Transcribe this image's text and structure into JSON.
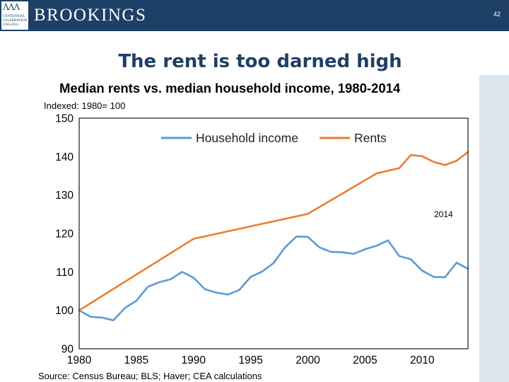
{
  "header": {
    "brand": "BROOKINGS",
    "page_number": "42"
  },
  "slide_title": "The rent is too darned high",
  "chart_data": {
    "type": "line",
    "title": "Median rents vs. median household income, 1980-2014",
    "subtitle": "Indexed: 1980= 100",
    "source": "Source: Census Bureau; BLS; Haver; CEA calculations",
    "annotation": "2014",
    "xlim": [
      1980,
      2014
    ],
    "ylim": [
      90,
      150
    ],
    "x_ticks": [
      1980,
      1985,
      1990,
      1995,
      2000,
      2005,
      2010
    ],
    "y_ticks": [
      90,
      100,
      110,
      120,
      130,
      140,
      150
    ],
    "series": [
      {
        "name": "Household income",
        "color": "#5b9bd5",
        "x": [
          1980,
          1981,
          1982,
          1983,
          1984,
          1985,
          1986,
          1987,
          1988,
          1989,
          1990,
          1991,
          1992,
          1993,
          1994,
          1995,
          1996,
          1997,
          1998,
          1999,
          2000,
          2001,
          2002,
          2003,
          2004,
          2005,
          2006,
          2007,
          2008,
          2009,
          2010,
          2011,
          2012,
          2013,
          2014
        ],
        "values": [
          100,
          98.3,
          98.1,
          97.4,
          100.6,
          102.5,
          106.1,
          107.3,
          108.1,
          110,
          108.5,
          105.5,
          104.6,
          104.1,
          105.3,
          108.7,
          110.1,
          112.3,
          116.4,
          119.2,
          119.1,
          116.4,
          115.2,
          115.1,
          114.7,
          115.9,
          116.8,
          118.2,
          114.1,
          113.3,
          110.3,
          108.7,
          108.6,
          112.4,
          110.8
        ]
      },
      {
        "name": "Rents",
        "color": "#ed7d31",
        "x": [
          1980,
          1990,
          2000,
          2006,
          2008,
          2009,
          2010,
          2011,
          2012,
          2013,
          2014
        ],
        "values": [
          100,
          118.6,
          125.1,
          135.6,
          137,
          140.4,
          140.1,
          138.6,
          137.8,
          138.9,
          141.2
        ]
      }
    ]
  }
}
